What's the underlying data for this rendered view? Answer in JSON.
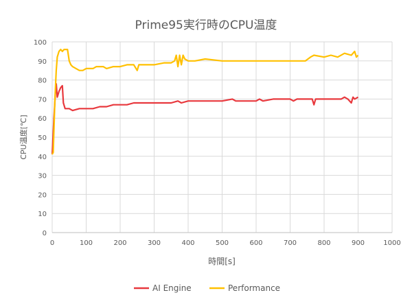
{
  "chart_data": {
    "type": "line",
    "title": "Prime95実行時のCPU温度",
    "xlabel": "時間[s]",
    "ylabel": "CPU温度[℃]",
    "xlim": [
      0,
      1000
    ],
    "ylim": [
      0,
      100
    ],
    "xticks": [
      0,
      100,
      200,
      300,
      400,
      500,
      600,
      700,
      800,
      900,
      1000
    ],
    "yticks": [
      0,
      10,
      20,
      30,
      40,
      50,
      60,
      70,
      80,
      90,
      100
    ],
    "grid": true,
    "legend": "bottom",
    "series": [
      {
        "name": "AI Engine",
        "color": "#e8383d",
        "x": [
          0,
          5,
          10,
          12,
          15,
          20,
          25,
          30,
          33,
          38,
          50,
          60,
          80,
          100,
          120,
          140,
          160,
          180,
          220,
          240,
          260,
          300,
          350,
          370,
          380,
          400,
          500,
          530,
          540,
          600,
          610,
          620,
          650,
          700,
          710,
          720,
          765,
          770,
          775,
          800,
          850,
          860,
          870,
          880,
          885,
          890,
          900
        ],
        "y": [
          41,
          60,
          75,
          78,
          71,
          74,
          76,
          77,
          68,
          65,
          65,
          64,
          65,
          65,
          65,
          66,
          66,
          67,
          67,
          68,
          68,
          68,
          68,
          69,
          68,
          69,
          69,
          70,
          69,
          69,
          70,
          69,
          70,
          70,
          69,
          70,
          70,
          67,
          70,
          70,
          70,
          71,
          70,
          68,
          71,
          70,
          71
        ]
      },
      {
        "name": "Performance",
        "color": "#ffc000",
        "x": [
          0,
          3,
          8,
          12,
          15,
          20,
          25,
          30,
          35,
          45,
          50,
          55,
          60,
          70,
          80,
          90,
          100,
          120,
          130,
          150,
          160,
          180,
          200,
          220,
          240,
          250,
          255,
          300,
          330,
          350,
          360,
          365,
          370,
          375,
          380,
          385,
          390,
          400,
          420,
          450,
          500,
          550,
          600,
          650,
          700,
          745,
          760,
          770,
          800,
          820,
          840,
          860,
          880,
          890,
          895,
          900
        ],
        "y": [
          41,
          42,
          70,
          85,
          92,
          95,
          96,
          95,
          96,
          96,
          90,
          88,
          87,
          86,
          85,
          85,
          86,
          86,
          87,
          87,
          86,
          87,
          87,
          88,
          88,
          85,
          88,
          88,
          89,
          89,
          90,
          93,
          87,
          93,
          88,
          93,
          91,
          90,
          90,
          91,
          90,
          90,
          90,
          90,
          90,
          90,
          92,
          93,
          92,
          93,
          92,
          94,
          93,
          95,
          92,
          93
        ]
      }
    ]
  }
}
